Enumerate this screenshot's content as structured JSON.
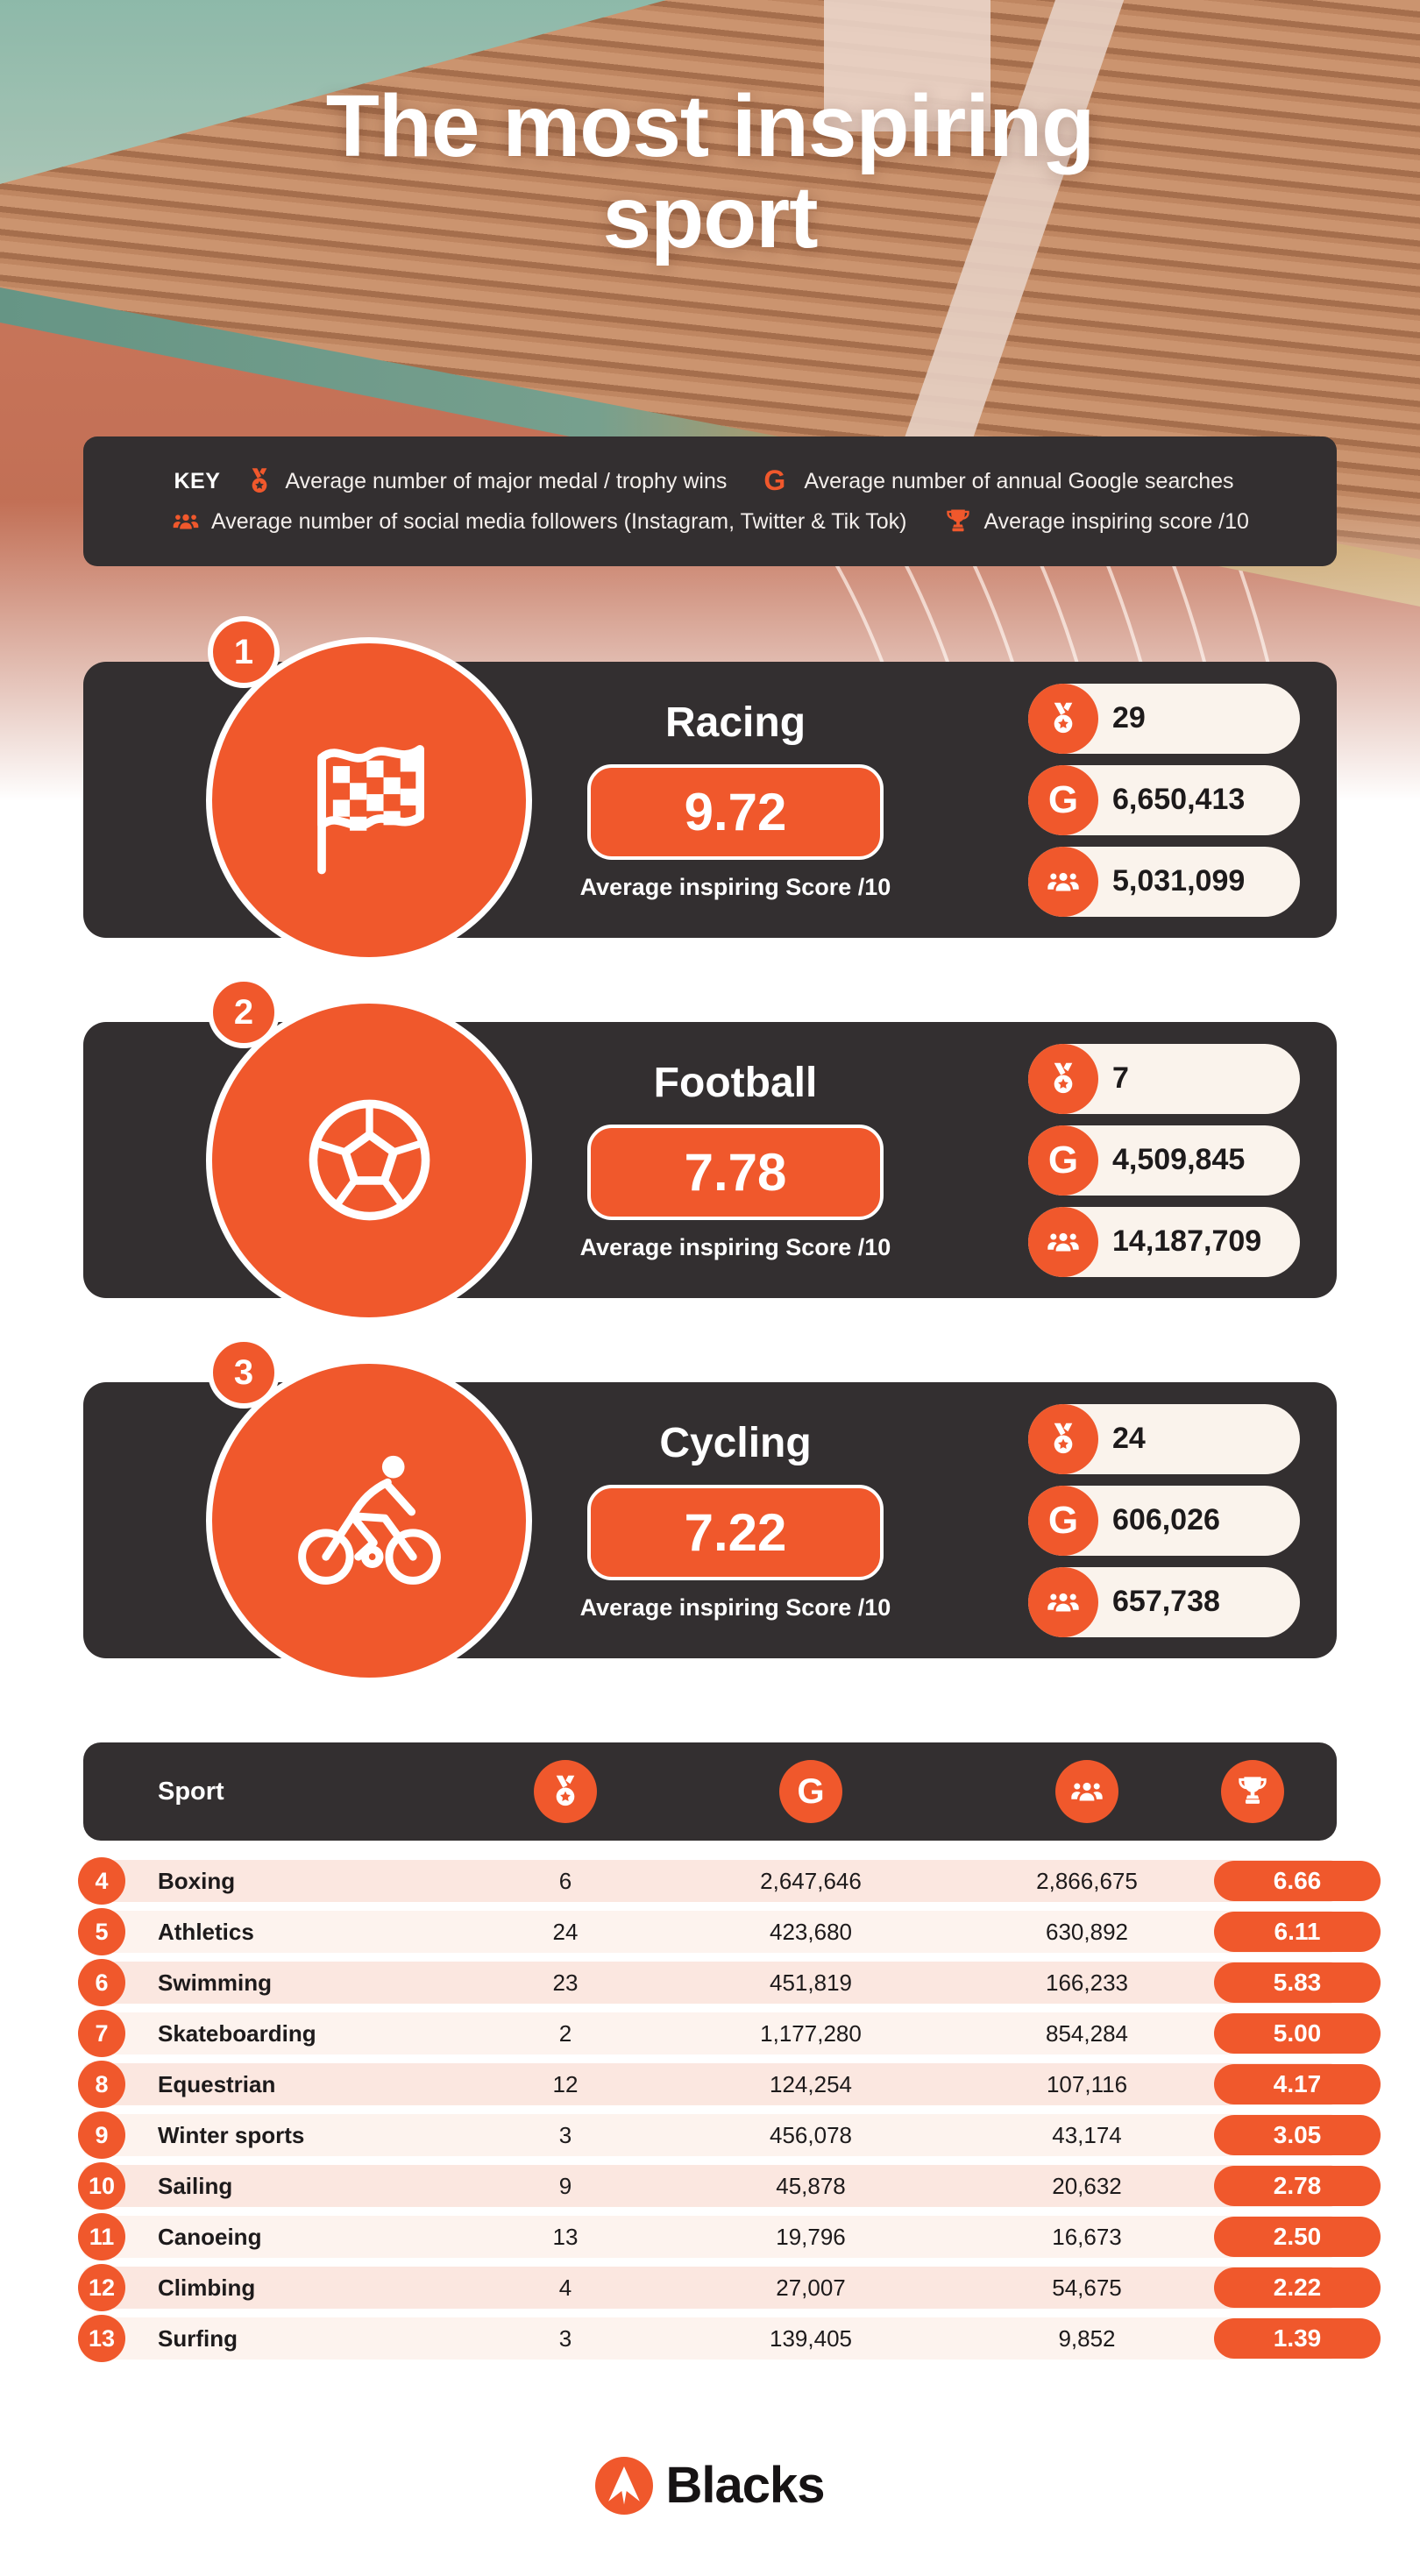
{
  "hero": {
    "title_line1": "The most inspiring",
    "title_line2": "sport"
  },
  "key": {
    "label": "KEY",
    "items": [
      {
        "icon": "medal-icon",
        "text": "Average number of major medal / trophy wins"
      },
      {
        "icon": "google-icon",
        "text": "Average number of annual Google searches"
      },
      {
        "icon": "social-icon",
        "text": "Average number of social media followers (Instagram, Twitter & Tik Tok)"
      },
      {
        "icon": "trophy-icon",
        "text": "Average inspiring score /10"
      }
    ]
  },
  "cards": [
    {
      "rank": "1",
      "sport": "Racing",
      "icon": "checkered-flag-icon",
      "score": "9.72",
      "score_caption": "Average inspiring Score /10",
      "medals": "29",
      "searches": "6,650,413",
      "followers": "5,031,099"
    },
    {
      "rank": "2",
      "sport": "Football",
      "icon": "football-icon",
      "score": "7.78",
      "score_caption": "Average inspiring Score /10",
      "medals": "7",
      "searches": "4,509,845",
      "followers": "14,187,709"
    },
    {
      "rank": "3",
      "sport": "Cycling",
      "icon": "cyclist-icon",
      "score": "7.22",
      "score_caption": "Average inspiring Score /10",
      "medals": "24",
      "searches": "606,026",
      "followers": "657,738"
    }
  ],
  "table": {
    "sport_header": "Sport",
    "column_icons": [
      "medal-icon",
      "google-icon",
      "social-icon",
      "trophy-icon"
    ],
    "rows": [
      {
        "rank": "4",
        "sport": "Boxing",
        "medals": "6",
        "searches": "2,647,646",
        "followers": "2,866,675",
        "score": "6.66"
      },
      {
        "rank": "5",
        "sport": "Athletics",
        "medals": "24",
        "searches": "423,680",
        "followers": "630,892",
        "score": "6.11"
      },
      {
        "rank": "6",
        "sport": "Swimming",
        "medals": "23",
        "searches": "451,819",
        "followers": "166,233",
        "score": "5.83"
      },
      {
        "rank": "7",
        "sport": "Skateboarding",
        "medals": "2",
        "searches": "1,177,280",
        "followers": "854,284",
        "score": "5.00"
      },
      {
        "rank": "8",
        "sport": "Equestrian",
        "medals": "12",
        "searches": "124,254",
        "followers": "107,116",
        "score": "4.17"
      },
      {
        "rank": "9",
        "sport": "Winter sports",
        "medals": "3",
        "searches": "456,078",
        "followers": "43,174",
        "score": "3.05"
      },
      {
        "rank": "10",
        "sport": "Sailing",
        "medals": "9",
        "searches": "45,878",
        "followers": "20,632",
        "score": "2.78"
      },
      {
        "rank": "11",
        "sport": "Canoeing",
        "medals": "13",
        "searches": "19,796",
        "followers": "16,673",
        "score": "2.50"
      },
      {
        "rank": "12",
        "sport": "Climbing",
        "medals": "4",
        "searches": "27,007",
        "followers": "54,675",
        "score": "2.22"
      },
      {
        "rank": "13",
        "sport": "Surfing",
        "medals": "3",
        "searches": "139,405",
        "followers": "9,852",
        "score": "1.39"
      }
    ]
  },
  "footer": {
    "brand": "Blacks"
  },
  "colors": {
    "accent": "#F0582C",
    "dark_panel": "#332F30",
    "pill_cream": "#FAF3EC",
    "row_odd": "#FBE7E0",
    "row_even": "#FDF3EE"
  },
  "chart_data": {
    "type": "table",
    "title": "The most inspiring sport",
    "columns": [
      "Rank",
      "Sport",
      "Average major medal / trophy wins",
      "Average annual Google searches",
      "Average social media followers",
      "Average inspiring score /10"
    ],
    "rows": [
      [
        1,
        "Racing",
        29,
        6650413,
        5031099,
        9.72
      ],
      [
        2,
        "Football",
        7,
        4509845,
        14187709,
        7.78
      ],
      [
        3,
        "Cycling",
        24,
        606026,
        657738,
        7.22
      ],
      [
        4,
        "Boxing",
        6,
        2647646,
        2866675,
        6.66
      ],
      [
        5,
        "Athletics",
        24,
        423680,
        630892,
        6.11
      ],
      [
        6,
        "Swimming",
        23,
        451819,
        166233,
        5.83
      ],
      [
        7,
        "Skateboarding",
        2,
        1177280,
        854284,
        5.0
      ],
      [
        8,
        "Equestrian",
        12,
        124254,
        107116,
        4.17
      ],
      [
        9,
        "Winter sports",
        3,
        456078,
        43174,
        3.05
      ],
      [
        10,
        "Sailing",
        9,
        45878,
        20632,
        2.78
      ],
      [
        11,
        "Canoeing",
        13,
        19796,
        16673,
        2.5
      ],
      [
        12,
        "Climbing",
        4,
        27007,
        54675,
        2.22
      ],
      [
        13,
        "Surfing",
        3,
        139405,
        9852,
        1.39
      ]
    ]
  }
}
